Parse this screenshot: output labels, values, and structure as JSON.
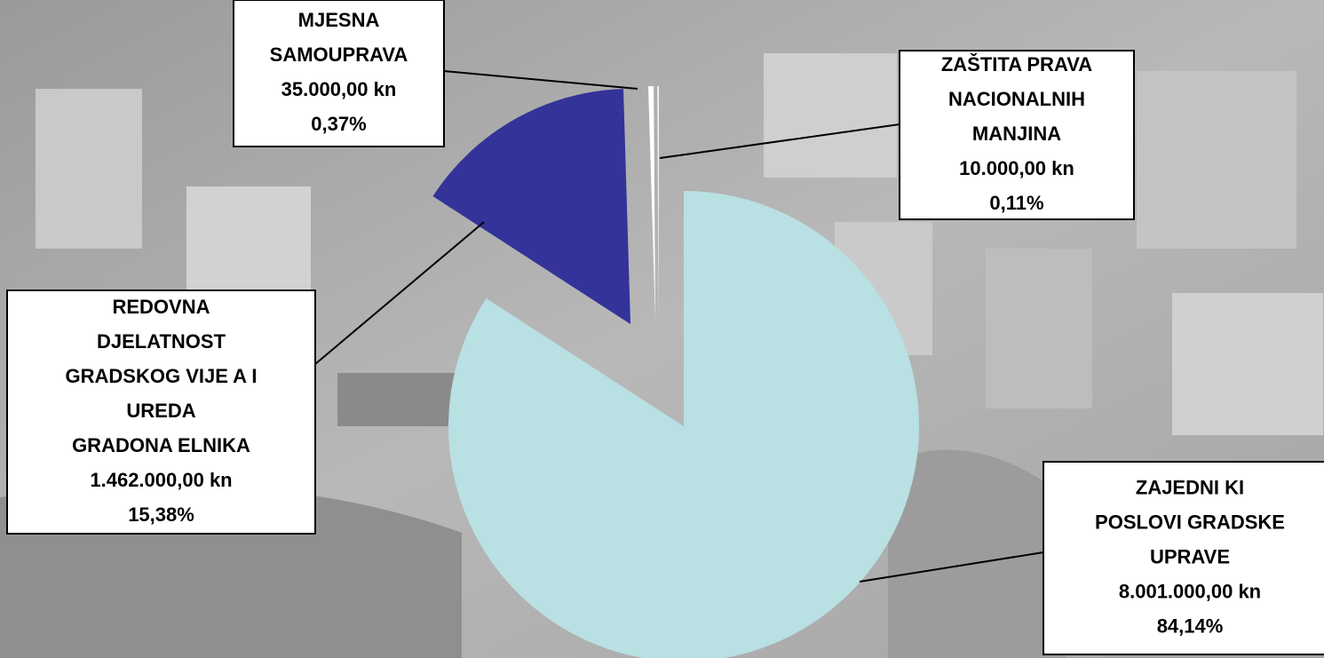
{
  "chart_data": {
    "type": "pie",
    "categories": [
      [
        "ZAJEDNI  KI",
        "POSLOVI GRADSKE",
        "UPRAVE"
      ],
      [
        "REDOVNA",
        "DJELATNOST",
        "GRADSKOG VIJE  A I",
        "UREDA",
        "GRADONA  ELNIKA"
      ],
      [
        "MJESNA",
        "SAMOUPRAVA"
      ],
      [
        "ZAŠTITA PRAVA",
        "NACIONALNIH",
        "MANJINA"
      ]
    ],
    "amount_labels": [
      "8.001.000,00 kn",
      "1.462.000,00 kn",
      "35.000,00 kn",
      "10.000,00 kn"
    ],
    "values": [
      84.14,
      15.38,
      0.37,
      0.11
    ],
    "value_labels": [
      "84,14%",
      "15,38%",
      "0,37%",
      "0,11%"
    ],
    "colors": [
      "#b9e0e3",
      "#333399",
      "#ffffff",
      "#f4f4f4"
    ]
  }
}
